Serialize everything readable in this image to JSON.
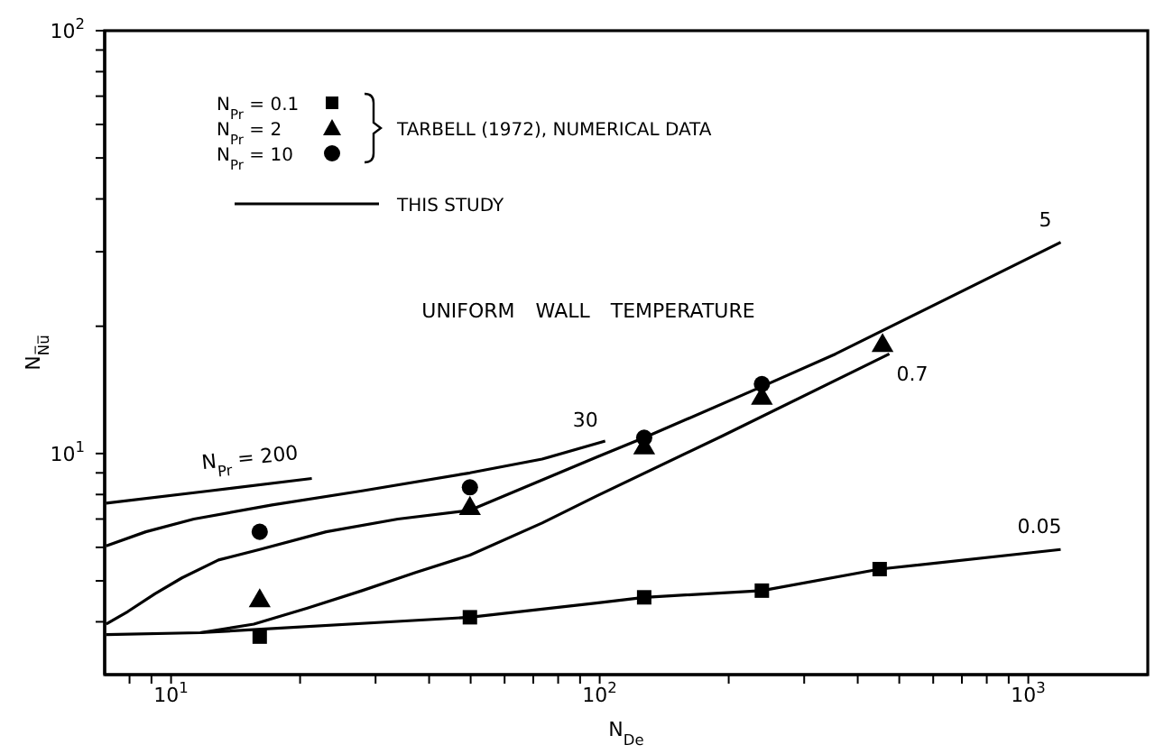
{
  "chart_data": {
    "type": "line",
    "xlabel": "N$_{De}$",
    "ylabel": "N$_{N̅u̅}$",
    "log": "xy",
    "xlim": [
      7,
      1900
    ],
    "ylim": [
      3,
      100
    ],
    "xticks": [
      {
        "value": 8,
        "label": null
      },
      {
        "value": 9,
        "label": null
      },
      {
        "value": 10,
        "label": "10$^{1}$"
      },
      {
        "value": 20,
        "label": null
      },
      {
        "value": 30,
        "label": null
      },
      {
        "value": 40,
        "label": null
      },
      {
        "value": 50,
        "label": null
      },
      {
        "value": 60,
        "label": null
      },
      {
        "value": 70,
        "label": null
      },
      {
        "value": 80,
        "label": null
      },
      {
        "value": 90,
        "label": null
      },
      {
        "value": 100,
        "label": "10$^{2}$"
      },
      {
        "value": 200,
        "label": null
      },
      {
        "value": 300,
        "label": null
      },
      {
        "value": 400,
        "label": null
      },
      {
        "value": 500,
        "label": null
      },
      {
        "value": 600,
        "label": null
      },
      {
        "value": 700,
        "label": null
      },
      {
        "value": 800,
        "label": null
      },
      {
        "value": 900,
        "label": null
      },
      {
        "value": 1000,
        "label": "10$^{3}$"
      }
    ],
    "yticks": [
      {
        "value": 4,
        "label": null
      },
      {
        "value": 5,
        "label": null
      },
      {
        "value": 6,
        "label": null
      },
      {
        "value": 7,
        "label": null
      },
      {
        "value": 8,
        "label": null
      },
      {
        "value": 9,
        "label": null
      },
      {
        "value": 10,
        "label": "10$^{1}$"
      },
      {
        "value": 20,
        "label": null
      },
      {
        "value": 30,
        "label": null
      },
      {
        "value": 40,
        "label": null
      },
      {
        "value": 50,
        "label": null
      },
      {
        "value": 60,
        "label": null
      },
      {
        "value": 70,
        "label": null
      },
      {
        "value": 80,
        "label": null
      },
      {
        "value": 90,
        "label": null
      },
      {
        "value": 100,
        "label": "10$^{2}$"
      }
    ],
    "legend": "top left",
    "annotations": [
      "TARBELL (1972), NUMERICAL DATA",
      "THIS STUDY",
      "UNIFORM WALL TEMPERATURE"
    ],
    "series": [
      {
        "type": "line",
        "name": "N$_{Pr}$ = 200",
        "color": "#000000",
        "x": [
          7.06,
          12.3,
          21.3
        ],
        "values": [
          7.63,
          8.16,
          8.73
        ]
      },
      {
        "type": "line",
        "name": "30",
        "color": "#000000",
        "x": [
          7.06,
          8.73,
          11.3,
          17.2,
          27.9,
          49.8,
          73.4,
          103
        ],
        "values": [
          6.05,
          6.53,
          7.0,
          7.56,
          8.16,
          9.0,
          9.7,
          10.7
        ]
      },
      {
        "type": "line",
        "name": "5",
        "color": "#000000",
        "x": [
          7.06,
          7.93,
          9.17,
          10.6,
          12.9,
          16.1,
          23.0,
          33.8,
          49.8,
          98.2,
          127,
          239,
          355,
          1190
        ],
        "values": [
          3.95,
          4.23,
          4.66,
          5.08,
          5.6,
          5.93,
          6.53,
          7.0,
          7.34,
          9.8,
          10.9,
          14.4,
          17.2,
          31.6
        ]
      },
      {
        "type": "line",
        "name": "0.7",
        "color": "#000000",
        "x": [
          11.7,
          15.6,
          20.8,
          27.9,
          37.2,
          49.8,
          73.4,
          98.2,
          193,
          474
        ],
        "values": [
          3.77,
          3.95,
          4.31,
          4.74,
          5.23,
          5.75,
          6.85,
          7.93,
          11.0,
          17.2
        ]
      },
      {
        "type": "line",
        "name": "0.05",
        "color": "#000000",
        "x": [
          7.06,
          11.7,
          49.8,
          98.2,
          127,
          239,
          450,
          1190
        ],
        "values": [
          3.73,
          3.77,
          4.1,
          4.43,
          4.57,
          4.74,
          5.33,
          5.93
        ]
      },
      {
        "type": "scatter",
        "name": "N$_{Pr}$ = 0.1",
        "color": "#000000",
        "marker": "square",
        "x": [
          16.1,
          49.8,
          127,
          239,
          450
        ],
        "values": [
          3.69,
          4.1,
          4.57,
          4.74,
          5.33
        ]
      },
      {
        "type": "scatter",
        "name": "N$_{Pr}$ = 2",
        "color": "#000000",
        "marker": "triangle",
        "x": [
          16.1,
          49.8,
          127,
          239,
          457
        ],
        "values": [
          4.48,
          7.41,
          10.3,
          13.5,
          18.0
        ]
      },
      {
        "type": "scatter",
        "name": "N$_{Pr}$ = 10",
        "color": "#000000",
        "marker": "circle",
        "x": [
          16.1,
          49.8,
          127,
          239
        ],
        "values": [
          6.53,
          8.32,
          10.9,
          14.6
        ]
      }
    ]
  }
}
